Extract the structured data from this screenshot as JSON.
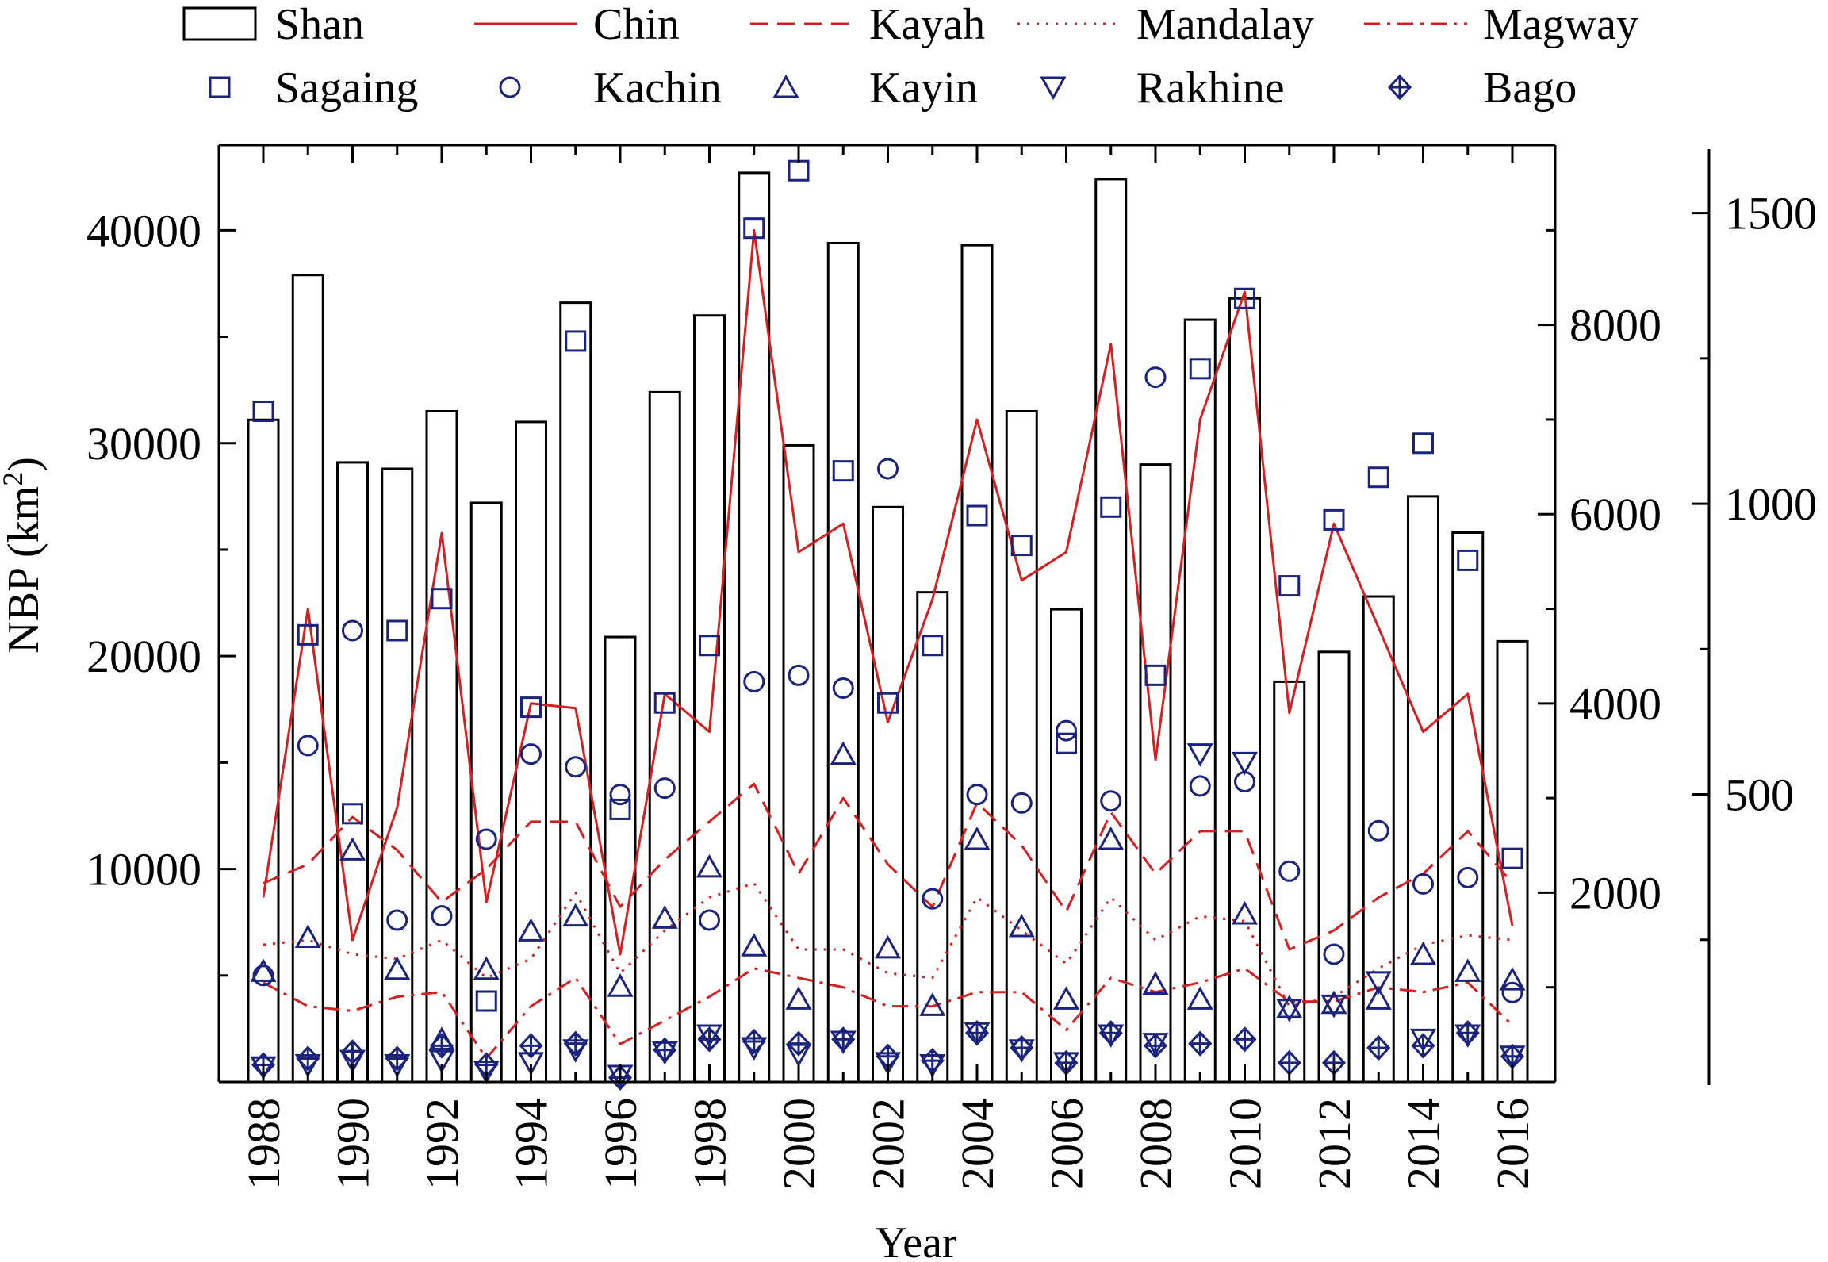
{
  "chart_data": {
    "type": "bar",
    "xlabel": "Year",
    "ylabel": "NBP (km²)",
    "ylabel_main": "NBP (km",
    "ylabel_sup": "2",
    "ylabel_close": ")",
    "x": [
      1988,
      1989,
      1990,
      1991,
      1992,
      1993,
      1994,
      1995,
      1996,
      1997,
      1998,
      1999,
      2000,
      2001,
      2002,
      2003,
      2004,
      2005,
      2006,
      2007,
      2008,
      2009,
      2010,
      2011,
      2012,
      2013,
      2014,
      2015,
      2016
    ],
    "x_tick_labels": [
      "1988",
      "1990",
      "1992",
      "1994",
      "1996",
      "1998",
      "2000",
      "2002",
      "2004",
      "2006",
      "2008",
      "2010",
      "2012",
      "2014",
      "2016"
    ],
    "axes": {
      "left": {
        "range": [
          0,
          44000
        ],
        "ticks": [
          10000,
          20000,
          30000,
          40000
        ],
        "tick_labels": [
          "10000",
          "20000",
          "30000",
          "40000"
        ]
      },
      "middle": {
        "range": [
          0,
          9900
        ],
        "ticks": [
          2000,
          4000,
          6000,
          8000
        ],
        "tick_labels": [
          "2000",
          "4000",
          "6000",
          "8000"
        ]
      },
      "right": {
        "range": [
          0,
          1610
        ],
        "ticks": [
          500,
          1000,
          1500
        ],
        "tick_labels": [
          "500",
          "1000",
          "1500"
        ]
      }
    },
    "series": [
      {
        "name": "Shan",
        "kind": "bar",
        "axis": "left",
        "values": [
          31100,
          37900,
          29100,
          28800,
          31500,
          27200,
          31000,
          36600,
          20900,
          32400,
          36000,
          42700,
          29900,
          39400,
          27000,
          23000,
          39300,
          31500,
          22200,
          42400,
          29000,
          35800,
          36800,
          18800,
          20200,
          22800,
          27500,
          25800,
          20700
        ]
      },
      {
        "name": "Chin",
        "kind": "line",
        "style": "solid",
        "axis": "middle",
        "values": [
          1950,
          5000,
          1500,
          2900,
          5800,
          1900,
          4000,
          3950,
          1350,
          4100,
          3700,
          9000,
          5600,
          5900,
          3800,
          5100,
          7000,
          5300,
          5600,
          7800,
          3400,
          7000,
          8350,
          3900,
          5900,
          4800,
          3700,
          4100,
          1650
        ]
      },
      {
        "name": "Kayah",
        "kind": "line",
        "style": "dashed",
        "axis": "middle",
        "values": [
          2100,
          2300,
          2800,
          2450,
          1900,
          2250,
          2750,
          2750,
          1850,
          2350,
          2750,
          3150,
          2200,
          3000,
          2300,
          1850,
          2950,
          2500,
          1800,
          2850,
          2200,
          2650,
          2650,
          1400,
          1600,
          1950,
          2200,
          2650,
          2100
        ]
      },
      {
        "name": "Mandalay",
        "kind": "line",
        "style": "dotted",
        "axis": "middle",
        "values": [
          1450,
          1500,
          1350,
          1300,
          1500,
          1100,
          1300,
          2000,
          1150,
          1600,
          1950,
          2100,
          1400,
          1400,
          1150,
          1100,
          1950,
          1600,
          1250,
          1950,
          1500,
          1750,
          1700,
          800,
          900,
          1200,
          1450,
          1550,
          1500
        ]
      },
      {
        "name": "Magway",
        "kind": "line",
        "style": "dashdot",
        "axis": "middle",
        "values": [
          1050,
          800,
          750,
          900,
          950,
          250,
          800,
          1100,
          400,
          650,
          900,
          1200,
          1100,
          1000,
          800,
          800,
          950,
          950,
          550,
          1100,
          950,
          1050,
          1200,
          850,
          850,
          1000,
          950,
          1050,
          600
        ]
      },
      {
        "name": "Sagaing",
        "kind": "marker",
        "marker": "square",
        "axis": "left",
        "values": [
          31500,
          21000,
          12600,
          21200,
          22700,
          3800,
          17600,
          34800,
          12800,
          17800,
          20500,
          40100,
          42800,
          28700,
          17800,
          20500,
          26600,
          25200,
          15900,
          27000,
          19100,
          33500,
          36800,
          23300,
          26400,
          28400,
          30000,
          24500,
          10500
        ]
      },
      {
        "name": "Kachin",
        "kind": "marker",
        "marker": "circle",
        "axis": "left",
        "values": [
          5000,
          15800,
          21200,
          7600,
          7800,
          11400,
          15400,
          14800,
          13500,
          13800,
          7600,
          18800,
          19100,
          18500,
          28800,
          8600,
          13500,
          13100,
          16500,
          13200,
          33100,
          13900,
          14100,
          9900,
          6000,
          11800,
          9300,
          9600,
          4200
        ]
      },
      {
        "name": "Kayin",
        "kind": "marker",
        "marker": "triangle-up",
        "axis": "left",
        "values": [
          5200,
          6800,
          10900,
          5300,
          2000,
          5300,
          7100,
          7800,
          4500,
          7700,
          10100,
          6400,
          3900,
          15400,
          6300,
          3600,
          11400,
          7300,
          3900,
          11400,
          4600,
          3900,
          7900,
          3500,
          3700,
          3900,
          6000,
          5200,
          4800
        ]
      },
      {
        "name": "Rakhine",
        "kind": "marker",
        "marker": "triangle-down",
        "axis": "left",
        "values": [
          700,
          800,
          1000,
          800,
          1000,
          500,
          900,
          1500,
          300,
          1400,
          2200,
          1600,
          1300,
          1900,
          900,
          800,
          2300,
          1500,
          900,
          2200,
          1800,
          15400,
          15000,
          3400,
          3600,
          4700,
          2000,
          2200,
          1200
        ]
      },
      {
        "name": "Bago",
        "kind": "marker",
        "marker": "diamond-plus",
        "axis": "left",
        "values": [
          800,
          1100,
          1400,
          1100,
          1700,
          800,
          1700,
          1800,
          200,
          1500,
          2000,
          1900,
          1800,
          2000,
          1200,
          1000,
          2300,
          1600,
          900,
          2300,
          1700,
          1800,
          2000,
          900,
          900,
          1600,
          1700,
          2300,
          1200
        ]
      }
    ],
    "colors": {
      "line": "#d42020",
      "marker": "#1a237e",
      "bar_stroke": "#000000"
    },
    "legend": {
      "position": "top",
      "columns": 5
    }
  }
}
